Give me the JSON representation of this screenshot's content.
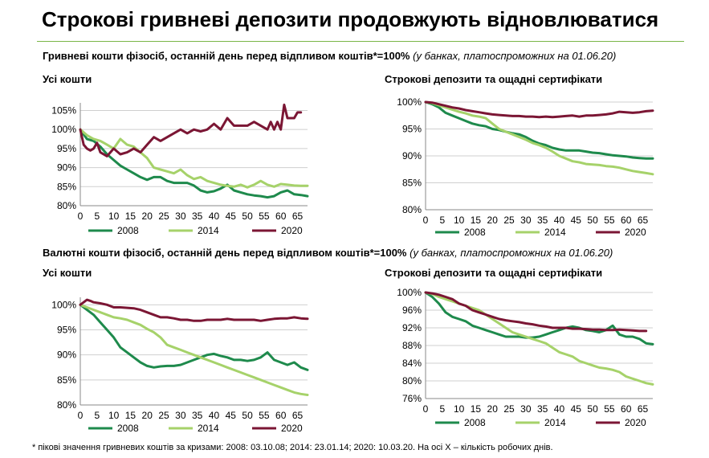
{
  "title": "Строкові гривневі депозити продовжують відновлюватися",
  "section1": {
    "heading": "Гривневі кошти фізосіб, останній день перед відпливом коштів*=100%",
    "note": "(у банках, платоспроможних на 01.06.20)"
  },
  "section2": {
    "heading": "Валютні кошти фізосіб, останній день перед відпливом коштів*=100%",
    "note": "(у банках, платоспроможних на 01.06.20)"
  },
  "footnote": "* пікові значення гривневих коштів за кризами: 2008: 03.10.08; 2014: 23.01.14; 2020: 10.03.20. На осі Х – кількість робочих днів.",
  "colors": {
    "2008": "#1e8a4c",
    "2014": "#a6d26a",
    "2020": "#7b1634",
    "grid": "#cfcfcf",
    "accent": "#7ab648"
  },
  "chart_data": [
    {
      "id": "uah_all",
      "type": "line",
      "title": "Усі кошти",
      "ylim": [
        80,
        107
      ],
      "yticks": [
        "80%",
        "85%",
        "90%",
        "95%",
        "100%",
        "105%"
      ],
      "yticks_values": [
        80,
        85,
        90,
        95,
        100,
        105
      ],
      "xticks": [
        0,
        5,
        10,
        15,
        20,
        25,
        30,
        35,
        40,
        45,
        50,
        55,
        60,
        65
      ],
      "xlim": [
        0,
        68
      ],
      "grid": true,
      "legend": "bottom",
      "series": [
        {
          "name": "2008",
          "x": [
            0,
            2,
            4,
            6,
            8,
            10,
            12,
            14,
            16,
            18,
            20,
            22,
            24,
            26,
            28,
            30,
            32,
            34,
            36,
            38,
            40,
            42,
            44,
            46,
            48,
            50,
            52,
            54,
            56,
            58,
            60,
            62,
            64,
            66,
            68
          ],
          "values": [
            100,
            97.5,
            97,
            95.5,
            93.5,
            92,
            90.5,
            89.5,
            88.5,
            87.5,
            86.8,
            87.5,
            87.5,
            86.5,
            86,
            86,
            86,
            85.3,
            84,
            83.5,
            83.8,
            84.5,
            85.5,
            84,
            83.5,
            83,
            82.7,
            82.5,
            82.2,
            82.5,
            83.5,
            84,
            83,
            82.8,
            82.5
          ]
        },
        {
          "name": "2014",
          "x": [
            0,
            2,
            4,
            6,
            8,
            10,
            12,
            14,
            16,
            18,
            20,
            22,
            24,
            26,
            28,
            30,
            32,
            34,
            36,
            38,
            40,
            42,
            44,
            46,
            48,
            50,
            52,
            54,
            56,
            58,
            60,
            62,
            64,
            66,
            68
          ],
          "values": [
            100,
            98.5,
            97.5,
            97,
            96,
            95,
            97.5,
            96,
            95.5,
            94,
            92.5,
            90,
            89.5,
            89,
            88.5,
            89.5,
            88,
            87,
            87.5,
            86.5,
            86,
            85.5,
            85.2,
            85,
            85.5,
            84.8,
            85.5,
            86.5,
            85.5,
            85,
            85.7,
            85.5,
            85.3,
            85.2,
            85.2
          ]
        },
        {
          "name": "2020",
          "x": [
            0,
            1,
            2,
            3,
            4,
            5,
            6,
            8,
            10,
            12,
            14,
            16,
            18,
            20,
            22,
            24,
            26,
            28,
            30,
            32,
            34,
            36,
            38,
            40,
            42,
            44,
            46,
            48,
            50,
            52,
            54,
            56,
            57,
            58,
            59,
            60,
            61,
            62,
            64,
            65,
            66
          ],
          "values": [
            100,
            96,
            95,
            94.5,
            95,
            96.5,
            94,
            93,
            95,
            93.5,
            94,
            95,
            94,
            96,
            98,
            97,
            98,
            99,
            100,
            99,
            100,
            99.5,
            100,
            101.5,
            100,
            103,
            101,
            101,
            101,
            102,
            101,
            100,
            102,
            100,
            102,
            100,
            106.5,
            103,
            103,
            104.5,
            104.5
          ]
        }
      ]
    },
    {
      "id": "uah_term",
      "type": "line",
      "title": "Строкові депозити та ощадні сертифікати",
      "ylim": [
        80,
        100
      ],
      "yticks": [
        "80%",
        "85%",
        "90%",
        "95%",
        "100%"
      ],
      "yticks_values": [
        80,
        85,
        90,
        95,
        100
      ],
      "xticks": [
        0,
        5,
        10,
        15,
        20,
        25,
        30,
        35,
        40,
        45,
        50,
        55,
        60,
        65
      ],
      "xlim": [
        0,
        68
      ],
      "grid": true,
      "legend": "bottom",
      "series": [
        {
          "name": "2008",
          "x": [
            0,
            2,
            4,
            6,
            8,
            10,
            12,
            14,
            16,
            18,
            20,
            22,
            24,
            26,
            28,
            30,
            32,
            34,
            36,
            38,
            40,
            42,
            44,
            46,
            48,
            50,
            52,
            54,
            56,
            58,
            60,
            62,
            64,
            66,
            68
          ],
          "values": [
            100,
            99.6,
            99,
            98,
            97.5,
            97,
            96.5,
            96,
            95.7,
            95.5,
            95,
            94.8,
            94.5,
            94.2,
            94,
            93.5,
            92.8,
            92.3,
            92,
            91.5,
            91.2,
            91,
            91,
            91,
            90.8,
            90.6,
            90.5,
            90.3,
            90.1,
            90,
            89.9,
            89.7,
            89.6,
            89.5,
            89.5
          ]
        },
        {
          "name": "2014",
          "x": [
            0,
            2,
            4,
            6,
            8,
            10,
            12,
            14,
            16,
            18,
            20,
            22,
            24,
            26,
            28,
            30,
            32,
            34,
            36,
            38,
            40,
            42,
            44,
            46,
            48,
            50,
            52,
            54,
            56,
            58,
            60,
            62,
            64,
            66,
            68
          ],
          "values": [
            100,
            99.8,
            99.4,
            99,
            98.6,
            98.2,
            97.9,
            97.5,
            97.3,
            97,
            96,
            95,
            94.5,
            94,
            93.5,
            93,
            92.4,
            92,
            91.5,
            90.8,
            90,
            89.5,
            89,
            88.8,
            88.5,
            88.4,
            88.3,
            88.1,
            88,
            87.8,
            87.5,
            87.2,
            87,
            86.8,
            86.6
          ]
        },
        {
          "name": "2020",
          "x": [
            0,
            2,
            4,
            6,
            8,
            10,
            12,
            14,
            16,
            18,
            20,
            22,
            24,
            26,
            28,
            30,
            32,
            34,
            36,
            38,
            40,
            42,
            44,
            46,
            48,
            50,
            52,
            54,
            56,
            58,
            60,
            62,
            64,
            66,
            68
          ],
          "values": [
            100,
            99.9,
            99.6,
            99.3,
            99,
            98.8,
            98.5,
            98.3,
            98.1,
            97.9,
            97.7,
            97.6,
            97.5,
            97.4,
            97.4,
            97.3,
            97.3,
            97.2,
            97.3,
            97.2,
            97.3,
            97.4,
            97.5,
            97.3,
            97.5,
            97.5,
            97.6,
            97.7,
            97.9,
            98.2,
            98.1,
            98,
            98.1,
            98.3,
            98.4
          ]
        }
      ]
    },
    {
      "id": "fx_all",
      "type": "line",
      "title": "Усі кошти",
      "ylim": [
        80,
        101.5
      ],
      "yticks": [
        "80%",
        "85%",
        "90%",
        "95%",
        "100%"
      ],
      "yticks_values": [
        80,
        85,
        90,
        95,
        100
      ],
      "xticks": [
        0,
        5,
        10,
        15,
        20,
        25,
        30,
        35,
        40,
        45,
        50,
        55,
        60,
        65
      ],
      "xlim": [
        0,
        68
      ],
      "grid": true,
      "legend": "bottom",
      "series": [
        {
          "name": "2008",
          "x": [
            0,
            2,
            4,
            6,
            8,
            10,
            12,
            14,
            16,
            18,
            20,
            22,
            24,
            26,
            28,
            30,
            32,
            34,
            36,
            38,
            40,
            42,
            44,
            46,
            48,
            50,
            52,
            54,
            56,
            58,
            60,
            62,
            64,
            66,
            68
          ],
          "values": [
            100,
            99,
            98,
            96.5,
            95,
            93.5,
            91.5,
            90.5,
            89.5,
            88.5,
            87.8,
            87.5,
            87.7,
            87.8,
            87.8,
            88,
            88.5,
            89,
            89.5,
            90,
            90.2,
            89.8,
            89.5,
            89,
            89,
            88.8,
            89,
            89.5,
            90.5,
            89,
            88.5,
            88,
            88.5,
            87.5,
            87
          ]
        },
        {
          "name": "2014",
          "x": [
            0,
            2,
            4,
            6,
            8,
            10,
            12,
            14,
            16,
            18,
            20,
            22,
            24,
            26,
            28,
            30,
            32,
            34,
            36,
            38,
            40,
            42,
            44,
            46,
            48,
            50,
            52,
            54,
            56,
            58,
            60,
            62,
            64,
            66,
            68
          ],
          "values": [
            100,
            99.5,
            99,
            98.5,
            98,
            97.5,
            97.3,
            97,
            96.5,
            96,
            95.2,
            94.5,
            93.5,
            92,
            91.5,
            91,
            90.5,
            90,
            89.5,
            89,
            88.5,
            88,
            87.5,
            87,
            86.5,
            86,
            85.5,
            85,
            84.5,
            84,
            83.5,
            83,
            82.5,
            82.2,
            82
          ]
        },
        {
          "name": "2020",
          "x": [
            0,
            1,
            2,
            3,
            4,
            6,
            8,
            10,
            12,
            14,
            16,
            18,
            20,
            22,
            24,
            26,
            28,
            30,
            32,
            34,
            36,
            38,
            40,
            42,
            44,
            46,
            48,
            50,
            52,
            54,
            56,
            58,
            60,
            62,
            64,
            66,
            68
          ],
          "values": [
            100,
            100.5,
            101,
            100.8,
            100.5,
            100.3,
            100,
            99.5,
            99.5,
            99.4,
            99.3,
            99,
            98.5,
            98,
            97.5,
            97.5,
            97.3,
            97,
            97,
            96.8,
            96.8,
            97,
            97,
            97,
            97.2,
            97,
            97,
            97,
            97,
            96.8,
            97,
            97.2,
            97.3,
            97.3,
            97.5,
            97.3,
            97.2
          ]
        }
      ]
    },
    {
      "id": "fx_term",
      "type": "line",
      "title": "Строкові депозити та ощадні сертифікати",
      "ylim": [
        76,
        100
      ],
      "yticks": [
        "76%",
        "80%",
        "84%",
        "88%",
        "92%",
        "96%",
        "100%"
      ],
      "yticks_values": [
        76,
        80,
        84,
        88,
        92,
        96,
        100
      ],
      "xticks": [
        0,
        5,
        10,
        15,
        20,
        25,
        30,
        35,
        40,
        45,
        50,
        55,
        60,
        65
      ],
      "xlim": [
        0,
        68
      ],
      "grid": true,
      "legend": "bottom",
      "series": [
        {
          "name": "2008",
          "x": [
            0,
            2,
            4,
            6,
            8,
            10,
            12,
            14,
            16,
            18,
            20,
            22,
            24,
            26,
            28,
            30,
            32,
            34,
            36,
            38,
            40,
            42,
            44,
            46,
            48,
            50,
            52,
            54,
            56,
            58,
            60,
            62,
            64,
            66,
            68
          ],
          "values": [
            100,
            99,
            97.5,
            95.5,
            94.5,
            94,
            93.5,
            92.5,
            92,
            91.5,
            91,
            90.5,
            90,
            90,
            90,
            89.8,
            89.8,
            90,
            90.5,
            91,
            91.5,
            92,
            92.3,
            92,
            91.5,
            91.3,
            91,
            91.5,
            92.5,
            90.5,
            90,
            90,
            89.5,
            88.5,
            88.3
          ]
        },
        {
          "name": "2014",
          "x": [
            0,
            2,
            4,
            6,
            8,
            10,
            12,
            14,
            16,
            18,
            20,
            22,
            24,
            26,
            28,
            30,
            32,
            34,
            36,
            38,
            40,
            42,
            44,
            46,
            48,
            50,
            52,
            54,
            56,
            58,
            60,
            62,
            64,
            66,
            68
          ],
          "values": [
            100,
            99.7,
            99,
            98.5,
            98,
            97.5,
            97,
            96.5,
            96,
            95,
            94,
            93,
            92,
            91,
            90.5,
            90,
            89.5,
            89,
            88.5,
            87.5,
            86.5,
            86,
            85.5,
            84.5,
            84,
            83.5,
            83,
            82.8,
            82.5,
            82,
            81,
            80.5,
            80,
            79.5,
            79.2
          ]
        },
        {
          "name": "2020",
          "x": [
            0,
            2,
            4,
            6,
            8,
            10,
            12,
            14,
            16,
            18,
            20,
            22,
            24,
            26,
            28,
            30,
            32,
            34,
            36,
            38,
            40,
            42,
            44,
            46,
            48,
            50,
            52,
            54,
            56,
            58,
            60,
            62,
            64,
            66
          ],
          "values": [
            100,
            99.8,
            99.5,
            99,
            98.5,
            97.5,
            97,
            96,
            95.5,
            95,
            94.5,
            94,
            93.7,
            93.5,
            93.3,
            93,
            92.8,
            92.5,
            92.3,
            92,
            92,
            92,
            91.8,
            91.8,
            91.7,
            91.6,
            91.6,
            91.5,
            91.5,
            91.6,
            91.5,
            91.4,
            91.3,
            91.3
          ]
        }
      ]
    }
  ]
}
